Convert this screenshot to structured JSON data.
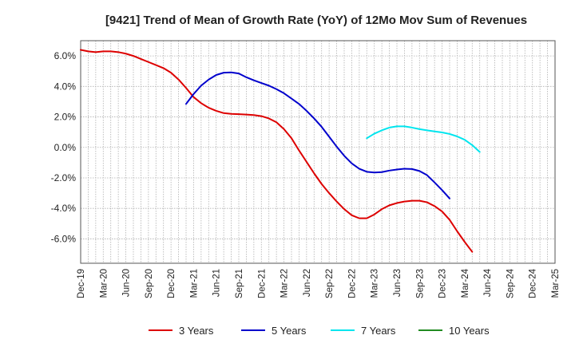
{
  "chart_data": {
    "type": "line",
    "title": "[9421]  Trend of Mean of Growth Rate (YoY) of 12Mo Mov Sum of Revenues",
    "xlabel": "",
    "ylabel": "",
    "ylim": [
      -7.6,
      7.0
    ],
    "yticks": [
      6.0,
      4.0,
      2.0,
      0.0,
      -2.0,
      -4.0,
      -6.0
    ],
    "ytick_labels": [
      "6.0%",
      "4.0%",
      "2.0%",
      "0.0%",
      "-2.0%",
      "-4.0%",
      "-6.0%"
    ],
    "x_start": "Dec-19",
    "x_months_span": 63,
    "xtick_labels": [
      "Dec-19",
      "Mar-20",
      "Jun-20",
      "Sep-20",
      "Dec-20",
      "Mar-21",
      "Jun-21",
      "Sep-21",
      "Dec-21",
      "Mar-22",
      "Jun-22",
      "Sep-22",
      "Dec-22",
      "Mar-23",
      "Jun-23",
      "Sep-23",
      "Dec-23",
      "Mar-24",
      "Jun-24",
      "Sep-24",
      "Dec-24",
      "Mar-25"
    ],
    "grid": true,
    "legend_position": "bottom",
    "series": [
      {
        "name": "3 Years",
        "color": "#dd0000",
        "start_month": 0,
        "values": [
          6.4,
          6.3,
          6.25,
          6.3,
          6.3,
          6.25,
          6.15,
          6.0,
          5.8,
          5.6,
          5.4,
          5.2,
          4.9,
          4.45,
          3.9,
          3.3,
          2.9,
          2.6,
          2.4,
          2.25,
          2.2,
          2.18,
          2.15,
          2.12,
          2.05,
          1.9,
          1.65,
          1.2,
          0.6,
          -0.2,
          -0.95,
          -1.7,
          -2.4,
          -3.0,
          -3.55,
          -4.05,
          -4.45,
          -4.65,
          -4.65,
          -4.4,
          -4.05,
          -3.8,
          -3.65,
          -3.55,
          -3.5,
          -3.5,
          -3.6,
          -3.85,
          -4.2,
          -4.75,
          -5.5,
          -6.2,
          -6.85
        ]
      },
      {
        "name": "5 Years",
        "color": "#0000cc",
        "start_month": 14,
        "values": [
          2.85,
          3.5,
          4.05,
          4.45,
          4.75,
          4.9,
          4.92,
          4.85,
          4.6,
          4.4,
          4.22,
          4.05,
          3.82,
          3.55,
          3.2,
          2.85,
          2.4,
          1.9,
          1.35,
          0.7,
          0.05,
          -0.55,
          -1.05,
          -1.4,
          -1.6,
          -1.65,
          -1.62,
          -1.52,
          -1.45,
          -1.4,
          -1.42,
          -1.55,
          -1.82,
          -2.3,
          -2.8,
          -3.35
        ]
      },
      {
        "name": "7 Years",
        "color": "#00e5ee",
        "start_month": 38,
        "values": [
          0.6,
          0.9,
          1.12,
          1.3,
          1.38,
          1.38,
          1.3,
          1.2,
          1.12,
          1.05,
          0.98,
          0.88,
          0.72,
          0.5,
          0.15,
          -0.3
        ]
      },
      {
        "name": "10 Years",
        "color": "#228b22",
        "start_month": 0,
        "values": []
      }
    ]
  }
}
